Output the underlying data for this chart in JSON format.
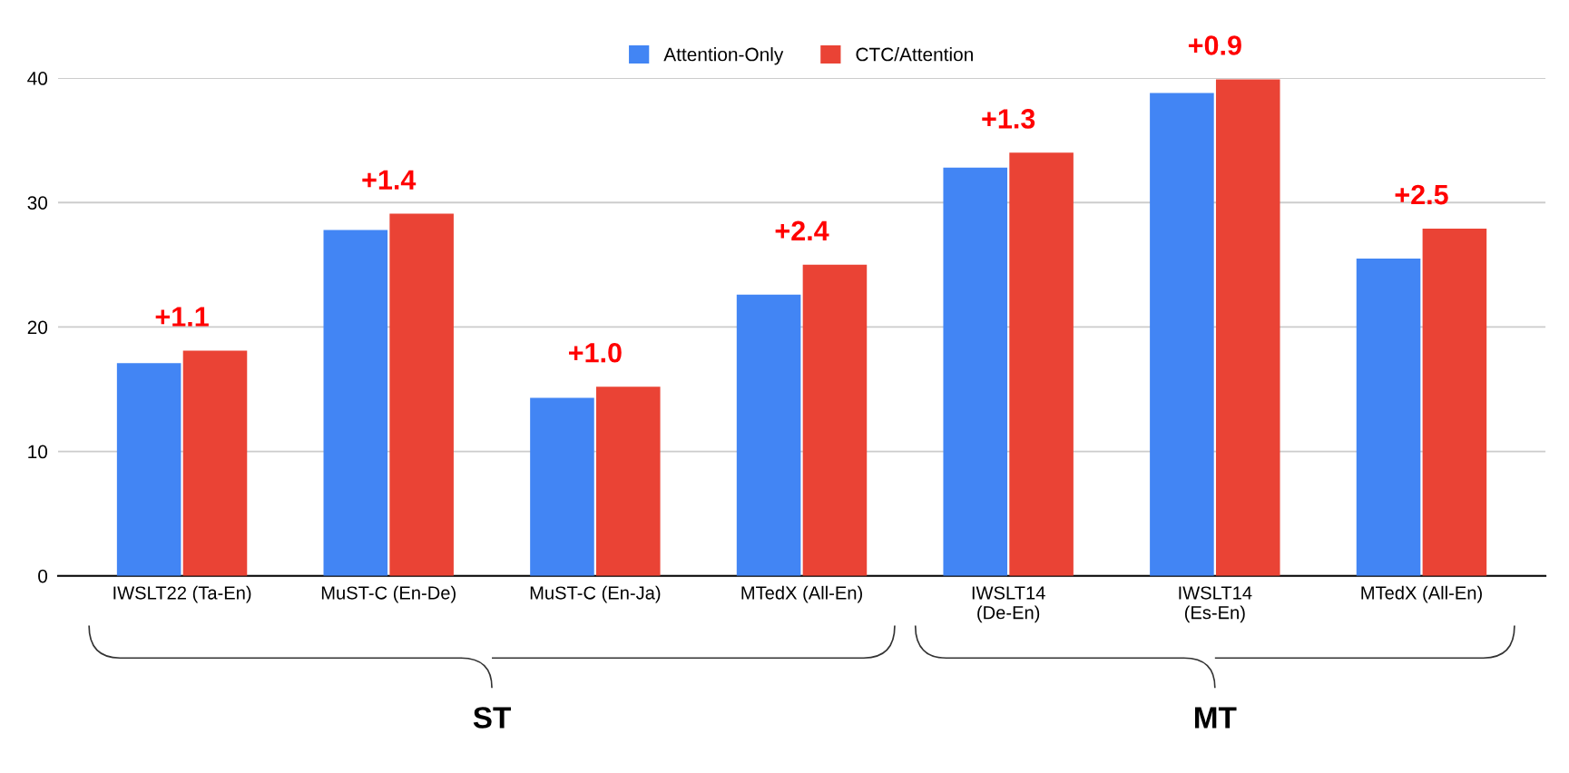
{
  "chart_data": {
    "type": "bar",
    "categories": [
      "IWSLT22 (Ta-En)",
      "MuST-C (En-De)",
      "MuST-C (En-Ja)",
      "MTedX (All-En)",
      "IWSLT14\n(De-En)",
      "IWSLT14\n(Es-En)",
      "MTedX (All-En)"
    ],
    "series": [
      {
        "name": "Attention-Only",
        "color": "#4285f4",
        "values": [
          17.1,
          27.8,
          14.3,
          22.6,
          32.8,
          38.8,
          25.5
        ]
      },
      {
        "name": "CTC/Attention",
        "color": "#ea4335",
        "values": [
          18.1,
          29.1,
          15.2,
          25.0,
          34.0,
          39.9,
          27.9
        ]
      }
    ],
    "ylim": [
      0,
      40
    ],
    "yticks": [
      0,
      10,
      20,
      30,
      40
    ],
    "grid": "y",
    "legend": "top",
    "annotations": [
      "+1.1",
      "+1.4",
      "+1.0",
      "+2.4",
      "+1.3",
      "+0.9",
      "+2.5",
      "ST",
      "MT"
    ]
  }
}
